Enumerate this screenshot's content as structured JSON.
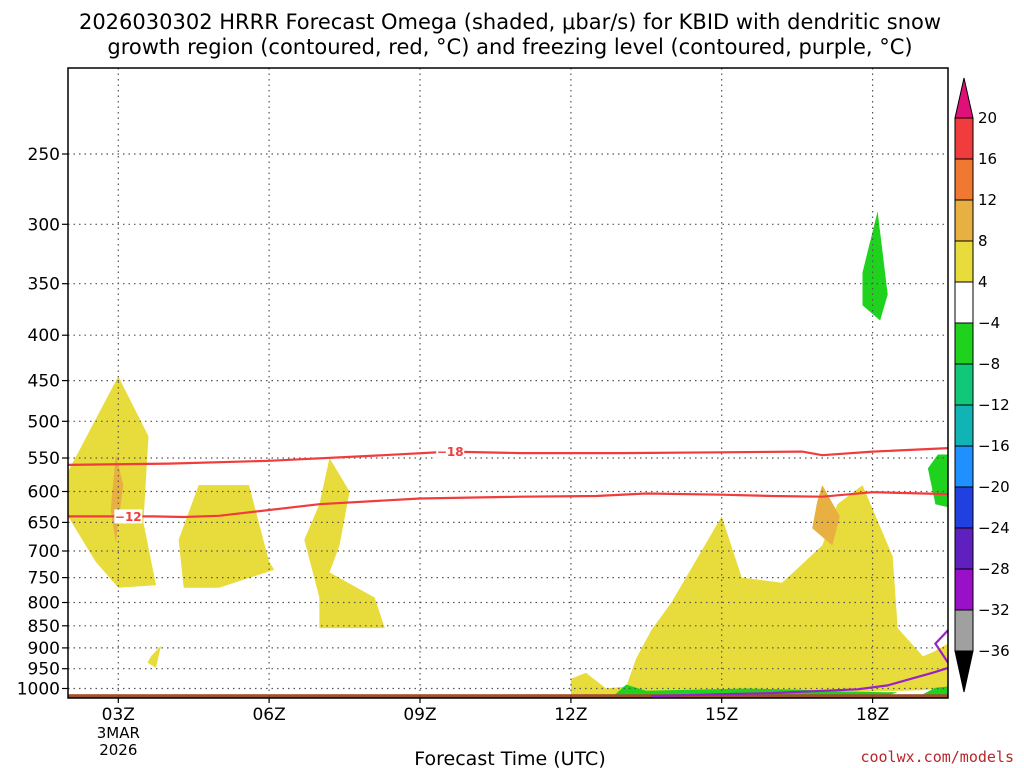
{
  "title_lines": [
    "2026030302 HRRR Forecast Omega (shaded, μbar/s) for KBID with dendritic snow",
    "growth region (contoured, red, °C) and freezing level (contoured, purple, °C)"
  ],
  "credit": "coolwx.com/models",
  "colors": {
    "omega_4_8": "#e8dc3c",
    "omega_8_12": "#e8b040",
    "omega_neg_4_8": "#1ed21e",
    "dgz_contour": "#f03c3c",
    "freezing_contour": "#9a20c8",
    "ground": "#a0522d"
  },
  "chart_data": {
    "type": "heatmap",
    "title": "2026030302 HRRR Forecast Omega (shaded, μbar/s) for KBID with dendritic snow growth region (contoured, red, °C) and freezing level (contoured, purple, °C)",
    "xlabel": "Forecast Time (UTC)",
    "ylabel": "",
    "x_range_hours": [
      2,
      19.5
    ],
    "y_range_hpa": [
      1025,
      200
    ],
    "y_scale": "log-pressure",
    "grid": true,
    "x_ticks": [
      {
        "hour": 3,
        "label": "03Z"
      },
      {
        "hour": 6,
        "label": "06Z"
      },
      {
        "hour": 9,
        "label": "09Z"
      },
      {
        "hour": 12,
        "label": "12Z"
      },
      {
        "hour": 15,
        "label": "15Z"
      },
      {
        "hour": 18,
        "label": "18Z"
      }
    ],
    "date_label_lines": [
      "3MAR",
      "2026"
    ],
    "y_ticks": [
      250,
      300,
      350,
      400,
      450,
      500,
      550,
      600,
      650,
      700,
      750,
      800,
      850,
      900,
      950,
      1000
    ],
    "colorbar": {
      "units": "μbar/s",
      "labels": [
        "20",
        "16",
        "12",
        "8",
        "4",
        "−4",
        "−8",
        "−12",
        "−16",
        "−20",
        "−24",
        "−28",
        "−32",
        "−36"
      ],
      "bins": [
        {
          "range": "16 to 20",
          "color": "#f03c3c"
        },
        {
          "range": "12 to 16",
          "color": "#f07830"
        },
        {
          "range": "8 to 12",
          "color": "#e8b040"
        },
        {
          "range": "4 to 8",
          "color": "#e8dc3c"
        },
        {
          "range": "-4 to 4",
          "color": "#ffffff"
        },
        {
          "range": "-8 to -4",
          "color": "#1ed21e"
        },
        {
          "range": "-12 to -8",
          "color": "#10c878"
        },
        {
          "range": "-16 to -12",
          "color": "#10b4b4"
        },
        {
          "range": "-20 to -16",
          "color": "#1e90ff"
        },
        {
          "range": "-24 to -20",
          "color": "#2040e0"
        },
        {
          "range": "-28 to -24",
          "color": "#6020c0"
        },
        {
          "range": "-32 to -28",
          "color": "#9a10c8"
        },
        {
          "range": "-36 to -32",
          "color": "#a0a0a0"
        }
      ],
      "top_extension_color": "#e0107a",
      "bottom_extension_color": "#000000"
    },
    "omega_regions": [
      {
        "level": "4 to 8",
        "points": [
          [
            2.0,
            570
          ],
          [
            3.0,
            445
          ],
          [
            3.6,
            520
          ],
          [
            3.5,
            650
          ],
          [
            3.75,
            765
          ],
          [
            3.0,
            770
          ],
          [
            2.55,
            720
          ],
          [
            2.0,
            640
          ]
        ]
      },
      {
        "level": "8 to 12",
        "points": [
          [
            2.95,
            545
          ],
          [
            3.1,
            590
          ],
          [
            2.95,
            685
          ],
          [
            2.85,
            630
          ]
        ]
      },
      {
        "level": "4 to 8",
        "points": [
          [
            3.65,
            920
          ],
          [
            3.85,
            895
          ],
          [
            3.75,
            948
          ],
          [
            3.58,
            935
          ]
        ]
      },
      {
        "level": "4 to 8",
        "points": [
          [
            4.6,
            590
          ],
          [
            5.6,
            590
          ],
          [
            6.0,
            720
          ],
          [
            6.1,
            735
          ],
          [
            5.0,
            770
          ],
          [
            4.3,
            770
          ],
          [
            4.2,
            680
          ]
        ]
      },
      {
        "level": "4 to 8",
        "points": [
          [
            7.0,
            620
          ],
          [
            7.2,
            550
          ],
          [
            7.6,
            600
          ],
          [
            7.4,
            690
          ],
          [
            7.2,
            740
          ],
          [
            8.1,
            790
          ],
          [
            8.3,
            855
          ],
          [
            7.0,
            855
          ],
          [
            7.0,
            790
          ],
          [
            6.7,
            680
          ]
        ]
      },
      {
        "level": "4 to 8",
        "points": [
          [
            12.0,
            975
          ],
          [
            12.3,
            960
          ],
          [
            12.7,
            1000
          ],
          [
            13.1,
            995
          ],
          [
            13.3,
            925
          ],
          [
            13.6,
            860
          ],
          [
            14.0,
            800
          ],
          [
            15.0,
            640
          ],
          [
            15.4,
            750
          ],
          [
            16.2,
            760
          ],
          [
            17.0,
            690
          ],
          [
            17.3,
            620
          ],
          [
            17.8,
            590
          ],
          [
            18.4,
            710
          ],
          [
            18.5,
            855
          ],
          [
            19.0,
            920
          ],
          [
            19.2,
            910
          ],
          [
            19.5,
            890
          ],
          [
            19.5,
            1000
          ],
          [
            18.9,
            1005
          ],
          [
            18.0,
            1008
          ],
          [
            17.0,
            1012
          ],
          [
            16.0,
            1013
          ],
          [
            14.5,
            1016
          ],
          [
            13.0,
            1018
          ],
          [
            12.0,
            1018
          ]
        ]
      },
      {
        "level": "8 to 12",
        "points": [
          [
            16.9,
            615
          ],
          [
            17.0,
            590
          ],
          [
            17.35,
            640
          ],
          [
            17.2,
            690
          ],
          [
            16.8,
            660
          ]
        ]
      },
      {
        "level": "-8 to -4",
        "points": [
          [
            17.8,
            340
          ],
          [
            18.1,
            290
          ],
          [
            18.3,
            360
          ],
          [
            18.15,
            385
          ],
          [
            17.8,
            370
          ]
        ]
      },
      {
        "level": "-8 to -4",
        "points": [
          [
            19.1,
            565
          ],
          [
            19.3,
            545
          ],
          [
            19.5,
            545
          ],
          [
            19.5,
            625
          ],
          [
            19.25,
            620
          ]
        ]
      },
      {
        "level": "-8 to -4",
        "points": [
          [
            12.8,
            1025
          ],
          [
            13.1,
            990
          ],
          [
            13.5,
            1006
          ],
          [
            14.5,
            1003
          ],
          [
            15.5,
            1000
          ],
          [
            16.5,
            1003
          ],
          [
            17.5,
            1008
          ],
          [
            18.5,
            1010
          ],
          [
            18.3,
            1018
          ],
          [
            17.5,
            1020
          ],
          [
            16.5,
            1022
          ],
          [
            15.0,
            1022
          ],
          [
            13.8,
            1024
          ]
        ]
      },
      {
        "level": "-8 to -4",
        "points": [
          [
            19.0,
            1015
          ],
          [
            19.25,
            998
          ],
          [
            19.5,
            995
          ],
          [
            19.5,
            1020
          ],
          [
            19.1,
            1020
          ]
        ]
      }
    ],
    "dgz_contours": [
      {
        "label": "−18",
        "label_hour": 9.6,
        "points": [
          [
            2.0,
            560
          ],
          [
            4.0,
            558
          ],
          [
            6.0,
            554
          ],
          [
            8.0,
            547
          ],
          [
            9.6,
            541
          ],
          [
            11.0,
            543
          ],
          [
            13.0,
            543
          ],
          [
            15.0,
            542
          ],
          [
            16.6,
            541
          ],
          [
            17.0,
            546
          ],
          [
            18.0,
            541
          ],
          [
            19.5,
            536
          ]
        ]
      },
      {
        "label": "−12",
        "label_hour": 3.2,
        "points": [
          [
            2.0,
            640
          ],
          [
            3.7,
            640
          ],
          [
            4.3,
            641
          ],
          [
            5.0,
            639
          ],
          [
            7.0,
            620
          ],
          [
            9.0,
            611
          ],
          [
            11.0,
            608
          ],
          [
            12.5,
            607
          ],
          [
            13.5,
            603
          ],
          [
            15.0,
            605
          ],
          [
            16.0,
            607
          ],
          [
            17.0,
            608
          ],
          [
            18.0,
            601
          ],
          [
            19.5,
            604
          ]
        ]
      }
    ],
    "freezing_contours": [
      {
        "label": "",
        "points": [
          [
            13.6,
            1020
          ],
          [
            15.0,
            1015
          ],
          [
            16.0,
            1012
          ],
          [
            17.0,
            1006
          ],
          [
            17.7,
            1002
          ],
          [
            18.3,
            992
          ],
          [
            18.8,
            974
          ],
          [
            19.2,
            960
          ],
          [
            19.5,
            948
          ]
        ]
      },
      {
        "label": "",
        "points": [
          [
            19.5,
            860
          ],
          [
            19.25,
            890
          ],
          [
            19.5,
            935
          ]
        ]
      }
    ],
    "ground_level_hpa": 1015
  }
}
